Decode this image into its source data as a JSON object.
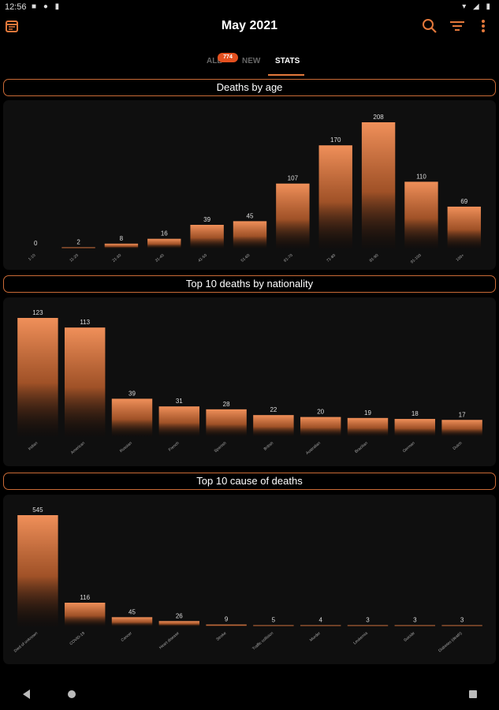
{
  "status": {
    "time": "12:56"
  },
  "appbar": {
    "title": "May 2021",
    "calendar_icon": "calendar-icon",
    "search_icon": "search-icon",
    "filter_icon": "filter-icon",
    "more_icon": "more-vert-icon"
  },
  "tabs": {
    "all": "ALL",
    "all_badge": "774",
    "new": "NEW",
    "stats": "STATS"
  },
  "colors": {
    "accent": "#e3783b",
    "bar_top": "#f0905a",
    "badge": "#e3501f"
  },
  "sections": {
    "age": "Deaths by age",
    "nationality": "Top 10 deaths by nationality",
    "cause": "Top 10 cause of deaths"
  },
  "chart_data": [
    {
      "type": "bar",
      "title": "Deaths by age",
      "categories": [
        "1-10",
        "11-20",
        "21-30",
        "31-40",
        "41-50",
        "51-60",
        "61-70",
        "71-80",
        "81-90",
        "91-100",
        "100+"
      ],
      "values": [
        0,
        2,
        8,
        16,
        39,
        45,
        107,
        170,
        208,
        110,
        69
      ],
      "ylim": [
        0,
        208
      ]
    },
    {
      "type": "bar",
      "title": "Top 10 deaths by nationality",
      "categories": [
        "Indian",
        "American",
        "Russian",
        "French",
        "Spanish",
        "British",
        "Australian",
        "Brazilian",
        "German",
        "Dutch"
      ],
      "values": [
        123,
        113,
        39,
        31,
        28,
        22,
        20,
        19,
        18,
        17
      ],
      "ylim": [
        0,
        123
      ]
    },
    {
      "type": "bar",
      "title": "Top 10 cause of deaths",
      "categories": [
        "Died of unknown",
        "COVID-19",
        "Cancer",
        "Heart disease",
        "Stroke",
        "Traffic collision",
        "Murder",
        "Leukemia",
        "Suicide",
        "Diabetes (death)"
      ],
      "values": [
        545,
        116,
        45,
        26,
        9,
        5,
        4,
        3,
        3,
        3
      ],
      "ylim": [
        0,
        545
      ]
    }
  ]
}
